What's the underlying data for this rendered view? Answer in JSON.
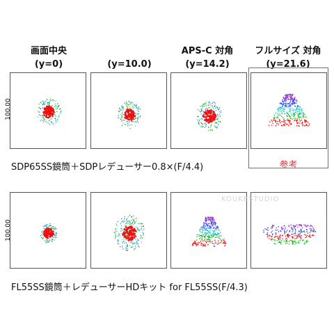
{
  "headers": [
    {
      "line1": "画面中央",
      "line2": "(y=0)"
    },
    {
      "line1": "",
      "line2": "(y=10.0)"
    },
    {
      "line1": "APS-C 対角",
      "line2": "(y=14.2)"
    },
    {
      "line1": "フルサイズ 対角",
      "line2": "(y=21.6)"
    }
  ],
  "row1": {
    "axis_label": "100.00",
    "caption": "SDP65SS鏡筒＋SDPレデューサー0.8×(F/4.4)",
    "reference_label": "参考"
  },
  "row2": {
    "axis_label": "100.00",
    "caption": "FL55SS鏡筒＋レデューサーHDキット for FL55SS(F/4.3)"
  },
  "watermark": "KOUKESTUDIO",
  "colors": {
    "red": "#ee1111",
    "green": "#22bb22",
    "blue": "#3355ee",
    "cyan": "#22cccc",
    "violet": "#8833cc",
    "frame": "#c94a4a"
  }
}
